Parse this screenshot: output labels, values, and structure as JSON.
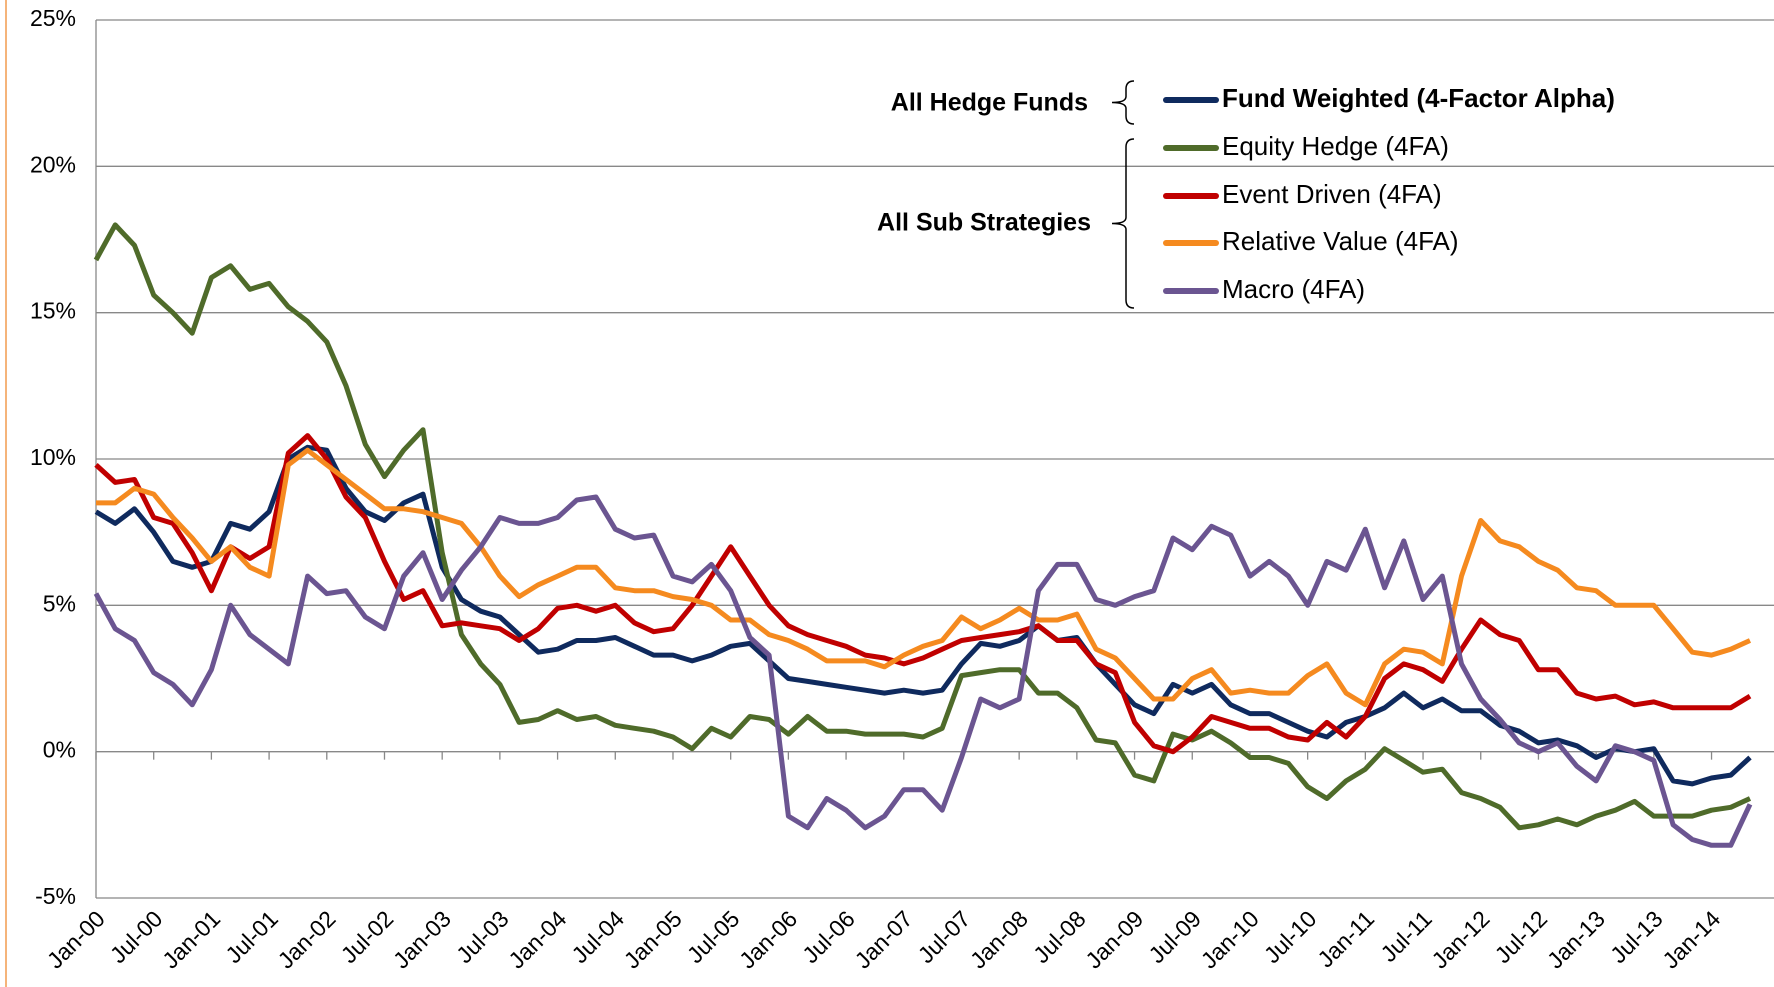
{
  "chart_data": {
    "type": "line",
    "categories": [
      "Jan-00",
      null,
      null,
      "Jul-00",
      null,
      null,
      "Jan-01",
      null,
      null,
      "Jul-01",
      null,
      null,
      "Jan-02",
      null,
      null,
      "Jul-02",
      null,
      null,
      "Jan-03",
      null,
      null,
      "Jul-03",
      null,
      null,
      "Jan-04",
      null,
      null,
      "Jul-04",
      null,
      null,
      "Jan-05",
      null,
      null,
      "Jul-05",
      null,
      null,
      "Jan-06",
      null,
      null,
      "Jul-06",
      null,
      null,
      "Jan-07",
      null,
      null,
      "Jul-07",
      null,
      null,
      "Jan-08",
      null,
      null,
      "Jul-08",
      null,
      null,
      "Jan-09",
      null,
      null,
      "Jul-09",
      null,
      null,
      "Jan-10",
      null,
      null,
      "Jul-10",
      null,
      null,
      "Jan-11",
      null,
      null,
      "Jul-11",
      null,
      null,
      "Jan-12",
      null,
      null,
      "Jul-12",
      null,
      null,
      "Jan-13",
      null,
      null,
      "Jul-13",
      null,
      null,
      "Jan-14",
      null,
      null
    ],
    "series": [
      {
        "name": "Fund Weighted (4-Factor Alpha)",
        "color": "#0f2a5e",
        "values": [
          8.2,
          7.8,
          8.3,
          7.5,
          6.5,
          6.3,
          6.5,
          7.8,
          7.6,
          8.2,
          10,
          10.4,
          10.3,
          9,
          8.2,
          7.9,
          8.5,
          8.8,
          6.3,
          5.2,
          4.8,
          4.6,
          4.0,
          3.4,
          3.5,
          3.8,
          3.8,
          3.9,
          3.6,
          3.3,
          3.3,
          3.1,
          3.3,
          3.6,
          3.7,
          3.1,
          2.5,
          2.4,
          2.3,
          2.2,
          2.1,
          2.0,
          2.1,
          2.0,
          2.1,
          3.0,
          3.7,
          3.6,
          3.8,
          4.3,
          3.8,
          3.9,
          3.0,
          2.3,
          1.6,
          1.3,
          2.3,
          2.0,
          2.3,
          1.6,
          1.3,
          1.3,
          1.0,
          0.7,
          0.5,
          1.0,
          1.2,
          1.5,
          2.0,
          1.5,
          1.8,
          1.4,
          1.4,
          0.9,
          0.7,
          0.3,
          0.4,
          0.2,
          -0.2,
          0.1,
          0.0,
          0.1,
          -1.0,
          -1.1,
          -0.9,
          -0.8,
          -0.2
        ]
      },
      {
        "name": "Equity Hedge (4FA)",
        "color": "#4f6b2a",
        "values": [
          16.8,
          18.0,
          17.3,
          15.6,
          15.0,
          14.3,
          16.2,
          16.6,
          15.8,
          16.0,
          15.2,
          14.7,
          14.0,
          12.5,
          10.5,
          9.4,
          10.3,
          11.0,
          6.8,
          4.0,
          3.0,
          2.3,
          1.0,
          1.1,
          1.4,
          1.1,
          1.2,
          0.9,
          0.8,
          0.7,
          0.5,
          0.1,
          0.8,
          0.5,
          1.2,
          1.1,
          0.6,
          1.2,
          0.7,
          0.7,
          0.6,
          0.6,
          0.6,
          0.5,
          0.8,
          2.6,
          2.7,
          2.8,
          2.8,
          2.0,
          2.0,
          1.5,
          0.4,
          0.3,
          -0.8,
          -1.0,
          0.6,
          0.4,
          0.7,
          0.3,
          -0.2,
          -0.2,
          -0.4,
          -1.2,
          -1.6,
          -1.0,
          -0.6,
          0.1,
          -0.3,
          -0.7,
          -0.6,
          -1.4,
          -1.6,
          -1.9,
          -2.6,
          -2.5,
          -2.3,
          -2.5,
          -2.2,
          -2.0,
          -1.7,
          -2.2,
          -2.2,
          -2.2,
          -2.0,
          -1.9,
          -1.6
        ]
      },
      {
        "name": "Event Driven (4FA)",
        "color": "#c00000",
        "values": [
          9.8,
          9.2,
          9.3,
          8.0,
          7.8,
          6.8,
          5.5,
          7.0,
          6.6,
          7.0,
          10.2,
          10.8,
          10.0,
          8.7,
          8.0,
          6.5,
          5.2,
          5.5,
          4.3,
          4.4,
          4.3,
          4.2,
          3.8,
          4.2,
          4.9,
          5.0,
          4.8,
          5.0,
          4.4,
          4.1,
          4.2,
          5.0,
          6.0,
          7.0,
          6.0,
          5.0,
          4.3,
          4.0,
          3.8,
          3.6,
          3.3,
          3.2,
          3.0,
          3.2,
          3.5,
          3.8,
          3.9,
          4.0,
          4.1,
          4.3,
          3.8,
          3.8,
          3.0,
          2.7,
          1.0,
          0.2,
          0.0,
          0.5,
          1.2,
          1.0,
          0.8,
          0.8,
          0.5,
          0.4,
          1.0,
          0.5,
          1.2,
          2.5,
          3.0,
          2.8,
          2.4,
          3.5,
          4.5,
          4.0,
          3.8,
          2.8,
          2.8,
          2.0,
          1.8,
          1.9,
          1.6,
          1.7,
          1.5,
          1.5,
          1.5,
          1.5,
          1.9
        ]
      },
      {
        "name": "Relative Value (4FA)",
        "color": "#f58a1f",
        "values": [
          8.5,
          8.5,
          9.0,
          8.8,
          8.0,
          7.3,
          6.5,
          7.0,
          6.3,
          6.0,
          9.8,
          10.3,
          9.8,
          9.3,
          8.8,
          8.3,
          8.3,
          8.2,
          8.0,
          7.8,
          7.0,
          6.0,
          5.3,
          5.7,
          6.0,
          6.3,
          6.3,
          5.6,
          5.5,
          5.5,
          5.3,
          5.2,
          5.0,
          4.5,
          4.5,
          4.0,
          3.8,
          3.5,
          3.1,
          3.1,
          3.1,
          2.9,
          3.3,
          3.6,
          3.8,
          4.6,
          4.2,
          4.5,
          4.9,
          4.5,
          4.5,
          4.7,
          3.5,
          3.2,
          2.5,
          1.8,
          1.8,
          2.5,
          2.8,
          2.0,
          2.1,
          2.0,
          2.0,
          2.6,
          3.0,
          2.0,
          1.6,
          3.0,
          3.5,
          3.4,
          3.0,
          6.0,
          7.9,
          7.2,
          7.0,
          6.5,
          6.2,
          5.6,
          5.5,
          5.0,
          5.0,
          5.0,
          4.2,
          3.4,
          3.3,
          3.5,
          3.8
        ]
      },
      {
        "name": "Macro (4FA)",
        "color": "#6b5591",
        "values": [
          5.4,
          4.2,
          3.8,
          2.7,
          2.3,
          1.6,
          2.8,
          5.0,
          4.0,
          3.5,
          3.0,
          6.0,
          5.4,
          5.5,
          4.6,
          4.2,
          6.0,
          6.8,
          5.2,
          6.2,
          7.0,
          8.0,
          7.8,
          7.8,
          8.0,
          8.6,
          8.7,
          7.6,
          7.3,
          7.4,
          6.0,
          5.8,
          6.4,
          5.5,
          3.9,
          3.3,
          -2.2,
          -2.6,
          -1.6,
          -2.0,
          -2.6,
          -2.2,
          -1.3,
          -1.3,
          -2.0,
          -0.2,
          1.8,
          1.5,
          1.8,
          5.5,
          6.4,
          6.4,
          5.2,
          5.0,
          5.3,
          5.5,
          7.3,
          6.9,
          7.7,
          7.4,
          6.0,
          6.5,
          6.0,
          5.0,
          6.5,
          6.2,
          7.6,
          5.6,
          7.2,
          5.2,
          6.0,
          3.0,
          1.8,
          1.1,
          0.3,
          0.0,
          0.3,
          -0.5,
          -1.0,
          0.2,
          0.0,
          -0.3,
          -2.5,
          -3.0,
          -3.2,
          -3.2,
          -1.8
        ]
      }
    ],
    "legend_groups": [
      "All Hedge Funds",
      "All Sub Strategies"
    ],
    "ylim": [
      -5,
      25
    ],
    "yticks": [
      {
        "value": -5,
        "label": "-5%"
      },
      {
        "value": 0,
        "label": "0%"
      },
      {
        "value": 5,
        "label": "5%"
      },
      {
        "value": 10,
        "label": "10%"
      },
      {
        "value": 15,
        "label": "15%"
      },
      {
        "value": 20,
        "label": "20%"
      },
      {
        "value": 25,
        "label": "25%"
      }
    ],
    "grid": true
  }
}
